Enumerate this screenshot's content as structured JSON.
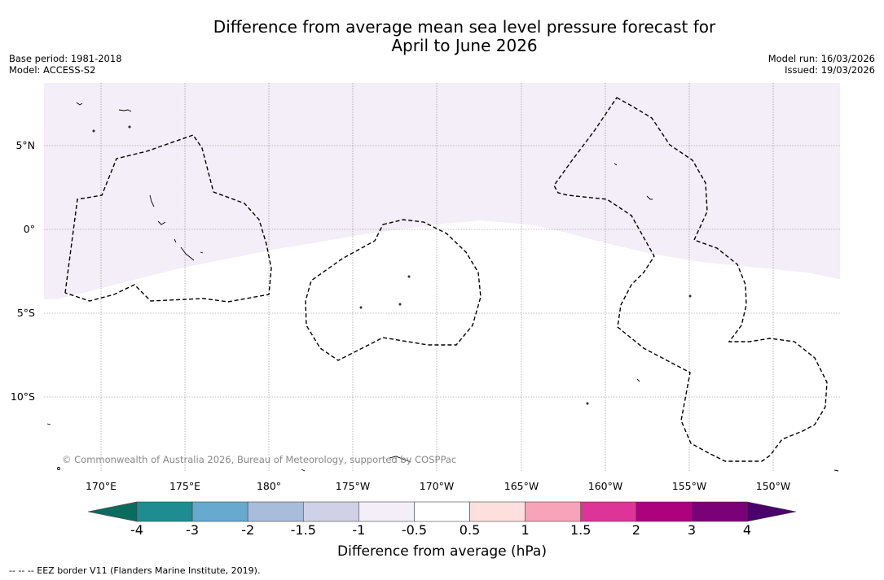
{
  "title": {
    "line1": "Difference from average mean sea level pressure forecast for",
    "line2": "April to June 2026"
  },
  "meta": {
    "base_period": "Base period: 1981-2018",
    "model": "Model: ACCESS-S2",
    "model_run": "Model run: 16/03/2026",
    "issued": "Issued: 19/03/2026"
  },
  "map": {
    "lat_labels": [
      "5°N",
      "0°",
      "5°S",
      "10°S"
    ],
    "lon_labels": [
      "170°E",
      "175°E",
      "180°",
      "175°W",
      "170°W",
      "165°W",
      "160°W",
      "155°W",
      "150°W"
    ],
    "copyright": "© Commonwealth of Australia 2026, Bureau of Meteorology, supported by COSPPac"
  },
  "colorbar": {
    "title": "Difference from average (hPa)",
    "tick_labels": [
      "-4",
      "-3",
      "-2",
      "-1.5",
      "-1",
      "-0.5",
      "0.5",
      "1",
      "1.5",
      "2",
      "3",
      "4"
    ],
    "colors": [
      "#1e8c91",
      "#67a9cf",
      "#a8bddc",
      "#d0d1e6",
      "#f3eef7",
      "#ffffff",
      "#fde0dd",
      "#f9a3b8",
      "#dd3497",
      "#ae017e",
      "#7a0177"
    ],
    "under_color": "#0b6b5e",
    "over_color": "#49006a"
  },
  "footer": {
    "eez_legend": "--  --  -- EEZ border V11 (Flanders Marine Institute, 2019)."
  }
}
